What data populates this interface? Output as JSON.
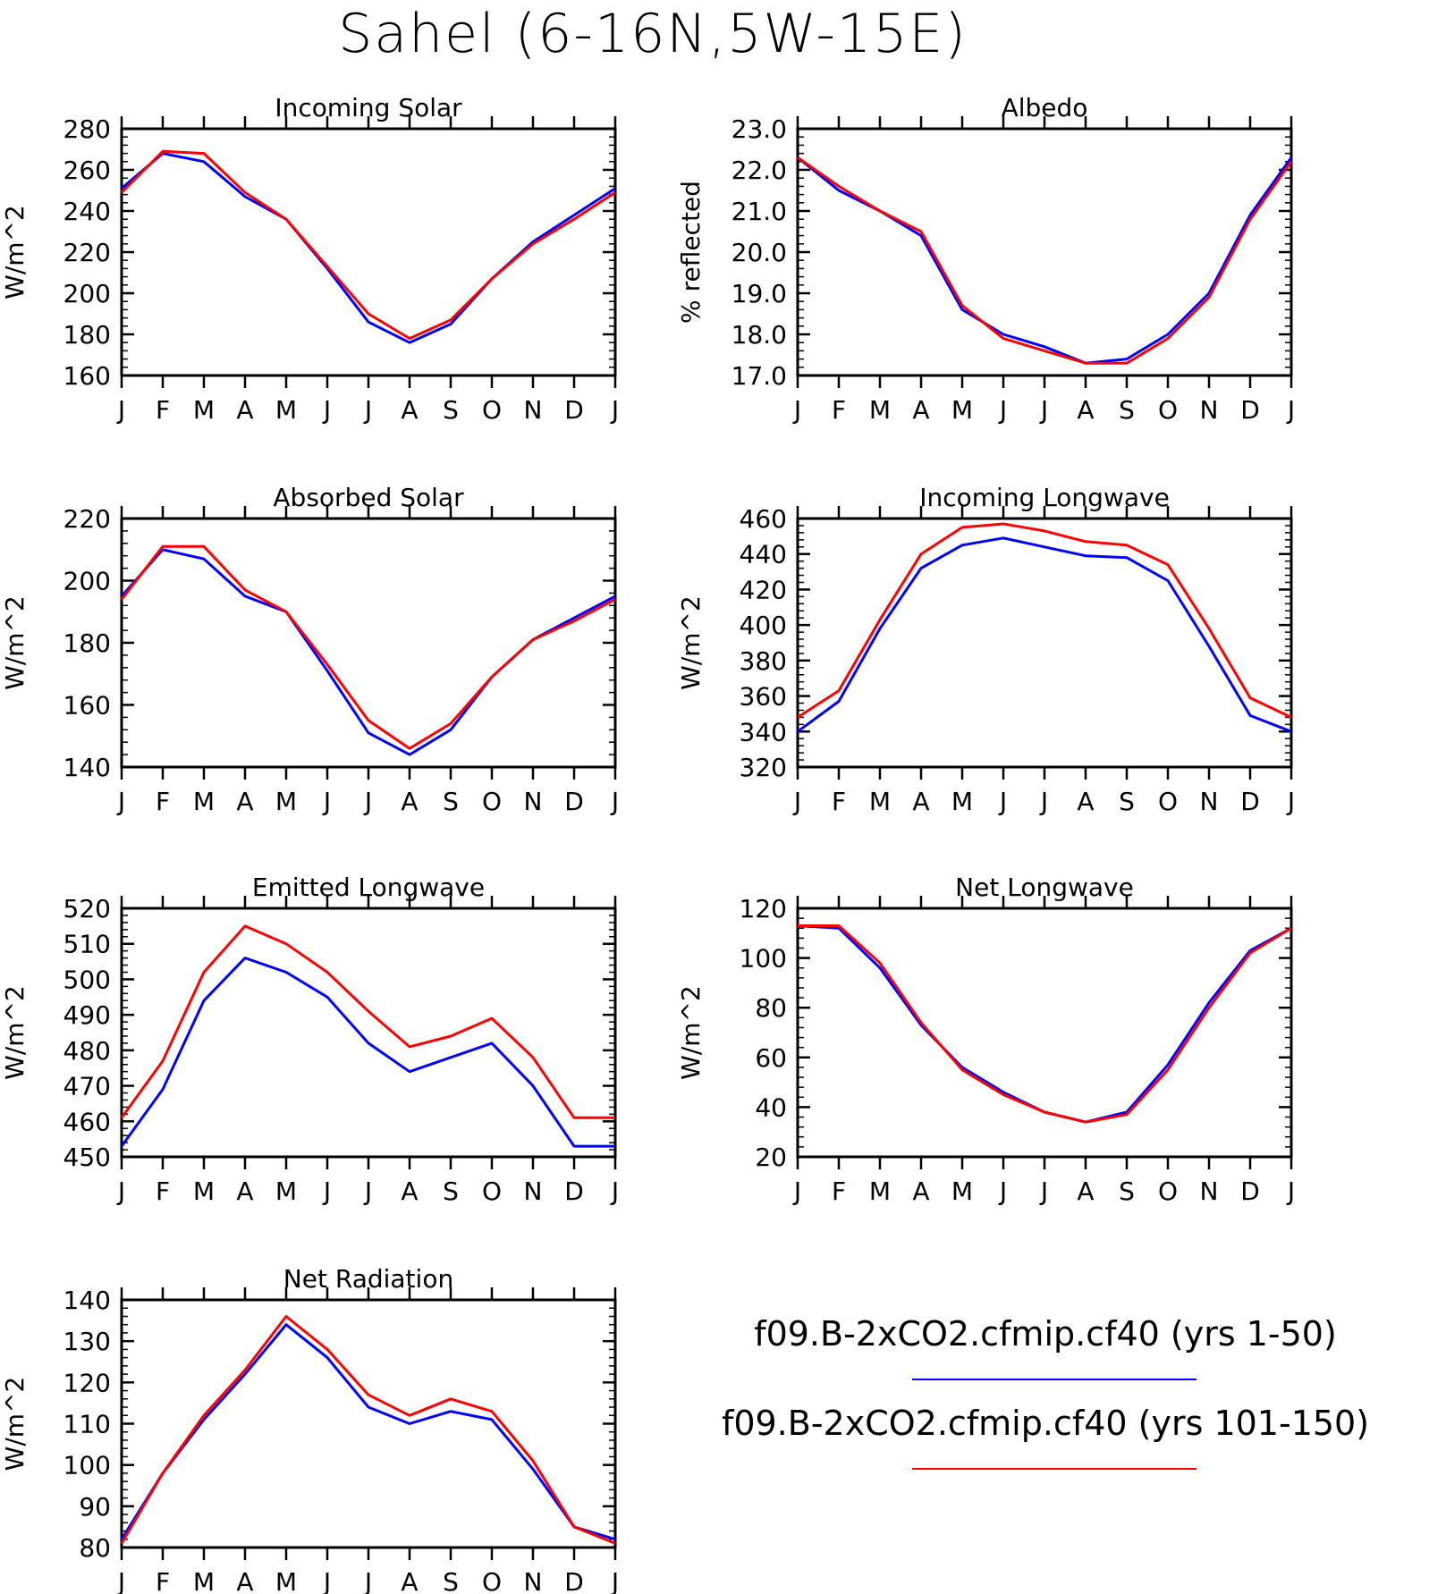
{
  "figure_title": "Sahel (6-16N,5W-15E)",
  "legend": [
    {
      "label": "f09.B-2xCO2.cfmip.cf40 (yrs 1-50)",
      "color": "#0000ff"
    },
    {
      "label": "f09.B-2xCO2.cfmip.cf40 (yrs 101-150)",
      "color": "#ff0000"
    }
  ],
  "chart_data": [
    {
      "type": "line",
      "title": "Incoming Solar",
      "ylabel": "W/m^2",
      "x": [
        "J",
        "F",
        "M",
        "A",
        "M",
        "J",
        "J",
        "A",
        "S",
        "O",
        "N",
        "D",
        "J"
      ],
      "ylim": [
        160,
        280
      ],
      "yticks": [
        160,
        180,
        200,
        220,
        240,
        260,
        280
      ],
      "ytick_labels": [
        "160",
        "180",
        "200",
        "220",
        "240",
        "260",
        "280"
      ],
      "series": [
        {
          "name": "f09.B-2xCO2.cfmip.cf40 (yrs 1-50)",
          "color": "#0000ff",
          "values": [
            251,
            268,
            264,
            247,
            236,
            212,
            186,
            176,
            185,
            207,
            225,
            238,
            251
          ]
        },
        {
          "name": "f09.B-2xCO2.cfmip.cf40 (yrs 101-150)",
          "color": "#ff0000",
          "values": [
            249,
            269,
            268,
            249,
            236,
            213,
            190,
            178,
            187,
            207,
            224,
            236,
            249
          ]
        }
      ]
    },
    {
      "type": "line",
      "title": "Albedo",
      "ylabel": "% reflected",
      "x": [
        "J",
        "F",
        "M",
        "A",
        "M",
        "J",
        "J",
        "A",
        "S",
        "O",
        "N",
        "D",
        "J"
      ],
      "ylim": [
        17.0,
        23.0
      ],
      "yticks": [
        17,
        18,
        19,
        20,
        21,
        22,
        23
      ],
      "ytick_labels": [
        "17.0",
        "18.0",
        "19.0",
        "20.0",
        "21.0",
        "22.0",
        "23.0"
      ],
      "series": [
        {
          "name": "f09.B-2xCO2.cfmip.cf40 (yrs 1-50)",
          "color": "#0000ff",
          "values": [
            22.3,
            21.5,
            21.0,
            20.4,
            18.6,
            18.0,
            17.7,
            17.3,
            17.4,
            18.0,
            19.0,
            20.9,
            22.3
          ]
        },
        {
          "name": "f09.B-2xCO2.cfmip.cf40 (yrs 101-150)",
          "color": "#ff0000",
          "values": [
            22.3,
            21.6,
            21.0,
            20.5,
            18.7,
            17.9,
            17.6,
            17.3,
            17.3,
            17.9,
            18.9,
            20.8,
            22.2
          ]
        }
      ]
    },
    {
      "type": "line",
      "title": "Absorbed Solar",
      "ylabel": "W/m^2",
      "x": [
        "J",
        "F",
        "M",
        "A",
        "M",
        "J",
        "J",
        "A",
        "S",
        "O",
        "N",
        "D",
        "J"
      ],
      "ylim": [
        140,
        220
      ],
      "yticks": [
        140,
        160,
        180,
        200,
        220
      ],
      "ytick_labels": [
        "140",
        "160",
        "180",
        "200",
        "220"
      ],
      "series": [
        {
          "name": "f09.B-2xCO2.cfmip.cf40 (yrs 1-50)",
          "color": "#0000ff",
          "values": [
            195,
            210,
            207,
            195,
            190,
            171,
            151,
            144,
            152,
            169,
            181,
            188,
            195
          ]
        },
        {
          "name": "f09.B-2xCO2.cfmip.cf40 (yrs 101-150)",
          "color": "#ff0000",
          "values": [
            194,
            211,
            211,
            197,
            190,
            173,
            155,
            146,
            154,
            169,
            181,
            187,
            194
          ]
        }
      ]
    },
    {
      "type": "line",
      "title": "Incoming Longwave",
      "ylabel": "W/m^2",
      "x": [
        "J",
        "F",
        "M",
        "A",
        "M",
        "J",
        "J",
        "A",
        "S",
        "O",
        "N",
        "D",
        "J"
      ],
      "ylim": [
        320,
        460
      ],
      "yticks": [
        320,
        340,
        360,
        380,
        400,
        420,
        440,
        460
      ],
      "ytick_labels": [
        "320",
        "340",
        "360",
        "380",
        "400",
        "420",
        "440",
        "460"
      ],
      "series": [
        {
          "name": "f09.B-2xCO2.cfmip.cf40 (yrs 1-50)",
          "color": "#0000ff",
          "values": [
            340,
            357,
            398,
            432,
            445,
            449,
            444,
            439,
            438,
            425,
            388,
            349,
            340
          ]
        },
        {
          "name": "f09.B-2xCO2.cfmip.cf40 (yrs 101-150)",
          "color": "#ff0000",
          "values": [
            348,
            363,
            403,
            440,
            455,
            457,
            453,
            447,
            445,
            434,
            398,
            359,
            348
          ]
        }
      ]
    },
    {
      "type": "line",
      "title": "Emitted Longwave",
      "ylabel": "W/m^2",
      "x": [
        "J",
        "F",
        "M",
        "A",
        "M",
        "J",
        "J",
        "A",
        "S",
        "O",
        "N",
        "D",
        "J"
      ],
      "ylim": [
        450,
        520
      ],
      "yticks": [
        450,
        460,
        470,
        480,
        490,
        500,
        510,
        520
      ],
      "ytick_labels": [
        "450",
        "460",
        "470",
        "480",
        "490",
        "500",
        "510",
        "520"
      ],
      "series": [
        {
          "name": "f09.B-2xCO2.cfmip.cf40 (yrs 1-50)",
          "color": "#0000ff",
          "values": [
            453,
            469,
            494,
            506,
            502,
            495,
            482,
            474,
            478,
            482,
            470,
            453,
            453
          ]
        },
        {
          "name": "f09.B-2xCO2.cfmip.cf40 (yrs 101-150)",
          "color": "#ff0000",
          "values": [
            461,
            477,
            502,
            515,
            510,
            502,
            491,
            481,
            484,
            489,
            478,
            461,
            461
          ]
        }
      ]
    },
    {
      "type": "line",
      "title": "Net Longwave",
      "ylabel": "W/m^2",
      "x": [
        "J",
        "F",
        "M",
        "A",
        "M",
        "J",
        "J",
        "A",
        "S",
        "O",
        "N",
        "D",
        "J"
      ],
      "ylim": [
        20,
        120
      ],
      "yticks": [
        20,
        40,
        60,
        80,
        100,
        120
      ],
      "ytick_labels": [
        "20",
        "40",
        "60",
        "80",
        "100",
        "120"
      ],
      "series": [
        {
          "name": "f09.B-2xCO2.cfmip.cf40 (yrs 1-50)",
          "color": "#0000ff",
          "values": [
            113,
            112,
            96,
            73,
            56,
            46,
            38,
            34,
            38,
            57,
            82,
            103,
            112
          ]
        },
        {
          "name": "f09.B-2xCO2.cfmip.cf40 (yrs 101-150)",
          "color": "#ff0000",
          "values": [
            113,
            113,
            98,
            74,
            55,
            45,
            38,
            34,
            37,
            55,
            80,
            102,
            112
          ]
        }
      ]
    },
    {
      "type": "line",
      "title": "Net Radiation",
      "ylabel": "W/m^2",
      "x": [
        "J",
        "F",
        "M",
        "A",
        "M",
        "J",
        "J",
        "A",
        "S",
        "O",
        "N",
        "D",
        "J"
      ],
      "ylim": [
        80,
        140
      ],
      "yticks": [
        80,
        90,
        100,
        110,
        120,
        130,
        140
      ],
      "ytick_labels": [
        "80",
        "90",
        "100",
        "110",
        "120",
        "130",
        "140"
      ],
      "series": [
        {
          "name": "f09.B-2xCO2.cfmip.cf40 (yrs 1-50)",
          "color": "#0000ff",
          "values": [
            82,
            98,
            111,
            122,
            134,
            126,
            114,
            110,
            113,
            111,
            99,
            85,
            82
          ]
        },
        {
          "name": "f09.B-2xCO2.cfmip.cf40 (yrs 101-150)",
          "color": "#ff0000",
          "values": [
            81,
            98,
            112,
            123,
            136,
            128,
            117,
            112,
            116,
            113,
            101,
            85,
            81
          ]
        }
      ]
    }
  ]
}
